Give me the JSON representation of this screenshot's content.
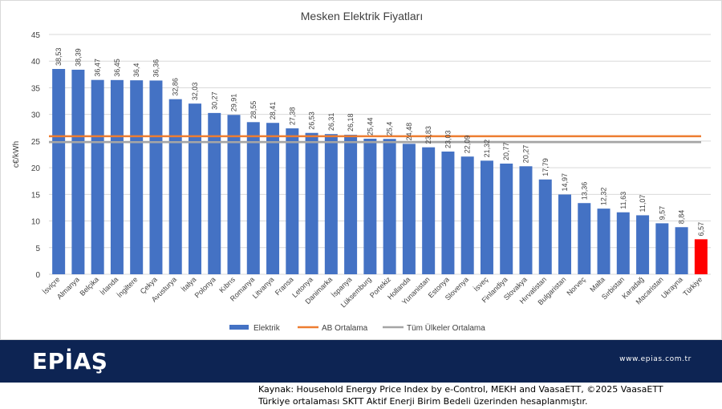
{
  "chart_data": {
    "type": "bar",
    "title": "Mesken Elektrik Fiyatları",
    "ylabel": "c€/kWh",
    "xlabel": "",
    "ylim": [
      0,
      45
    ],
    "yticks": [
      0,
      5,
      10,
      15,
      20,
      25,
      30,
      35,
      40,
      45
    ],
    "grid": true,
    "legend_position": "bottom",
    "categories": [
      "İsviçre",
      "Almanya",
      "Belçika",
      "İrlanda",
      "İngiltere",
      "Çekya",
      "Avusturya",
      "İtalya",
      "Polonya",
      "Kıbrıs",
      "Romanya",
      "Litvanya",
      "Fransa",
      "Letonya",
      "Danimarka",
      "İspanya",
      "Lüksemburg",
      "Portekiz",
      "Hollanda",
      "Yunanistan",
      "Estonya",
      "Slovenya",
      "İsveç",
      "Finlandiya",
      "Slovakya",
      "Hırvatistan",
      "Bulgaristan",
      "Norveç",
      "Malta",
      "Sırbistan",
      "Karadağ",
      "Macaristan",
      "Ukrayna",
      "Türkiye"
    ],
    "series": [
      {
        "name": "Elektrik",
        "type": "bar",
        "color": "#4472c4",
        "highlight_color": "#ff0000",
        "highlight_category": "Türkiye",
        "values": [
          38.53,
          38.39,
          36.47,
          36.45,
          36.4,
          36.36,
          32.86,
          32.03,
          30.27,
          29.91,
          28.55,
          28.41,
          27.38,
          26.53,
          26.31,
          26.18,
          25.44,
          25.4,
          24.48,
          23.83,
          23.03,
          22.09,
          21.32,
          20.77,
          20.27,
          17.79,
          14.97,
          13.36,
          12.32,
          11.63,
          11.07,
          9.57,
          8.84,
          6.57
        ],
        "labels": [
          "38,53",
          "38,39",
          "36,47",
          "36,45",
          "36,4",
          "36,36",
          "32,86",
          "32,03",
          "30,27",
          "29,91",
          "28,55",
          "28,41",
          "27,38",
          "26,53",
          "26,31",
          "26,18",
          "25,44",
          "25,4",
          "24,48",
          "23,83",
          "23,03",
          "22,09",
          "21,32",
          "20,77",
          "20,27",
          "17,79",
          "14,97",
          "13,36",
          "12,32",
          "11,63",
          "11,07",
          "9,57",
          "8,84",
          "6,57"
        ]
      },
      {
        "name": "AB Ortalama",
        "type": "line",
        "color": "#ed7d31",
        "value": 25.9
      },
      {
        "name": "Tüm Ülkeler Ortalama",
        "type": "line",
        "color": "#a5a5a5",
        "value": 24.8
      }
    ]
  },
  "banner": {
    "logo": "EPİAŞ",
    "website": "www.epias.com.tr",
    "color": "#0d2453"
  },
  "footer": {
    "line1": "Kaynak: Household Energy Price Index by e-Control, MEKH and VaasaETT, ©2025 VaasaETT",
    "line2": "Türkiye ortalaması SKTT Aktif Enerji Birim Bedeli üzerinden hesaplanmıştır."
  }
}
